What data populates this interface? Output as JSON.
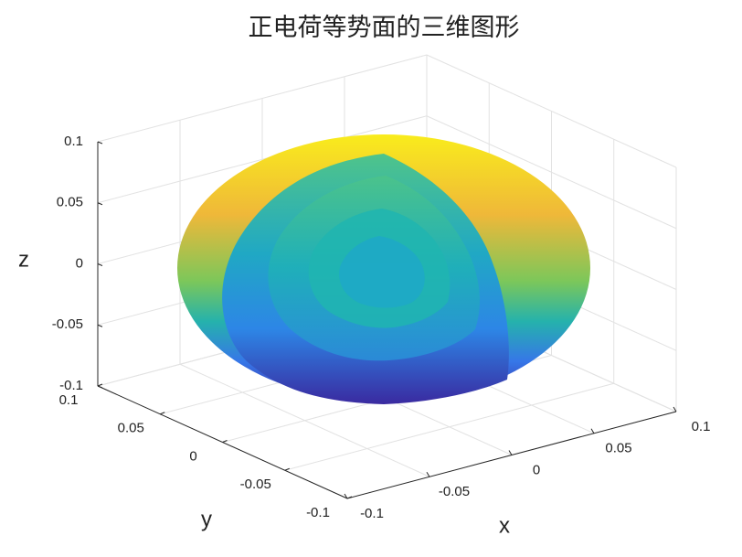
{
  "chart_data": {
    "type": "surface3d",
    "title": "正电荷等势面的三维图形",
    "xlabel": "x",
    "ylabel": "y",
    "zlabel": "z",
    "xlim": [
      -0.1,
      0.1
    ],
    "ylim": [
      -0.1,
      0.1
    ],
    "zlim": [
      -0.1,
      0.1
    ],
    "xticks": [
      -0.1,
      -0.05,
      0,
      0.05,
      0.1
    ],
    "yticks": [
      -0.1,
      -0.05,
      0,
      0.05,
      0.1
    ],
    "zticks": [
      -0.1,
      -0.05,
      0,
      0.05,
      0.1
    ],
    "grid": true
  }
}
